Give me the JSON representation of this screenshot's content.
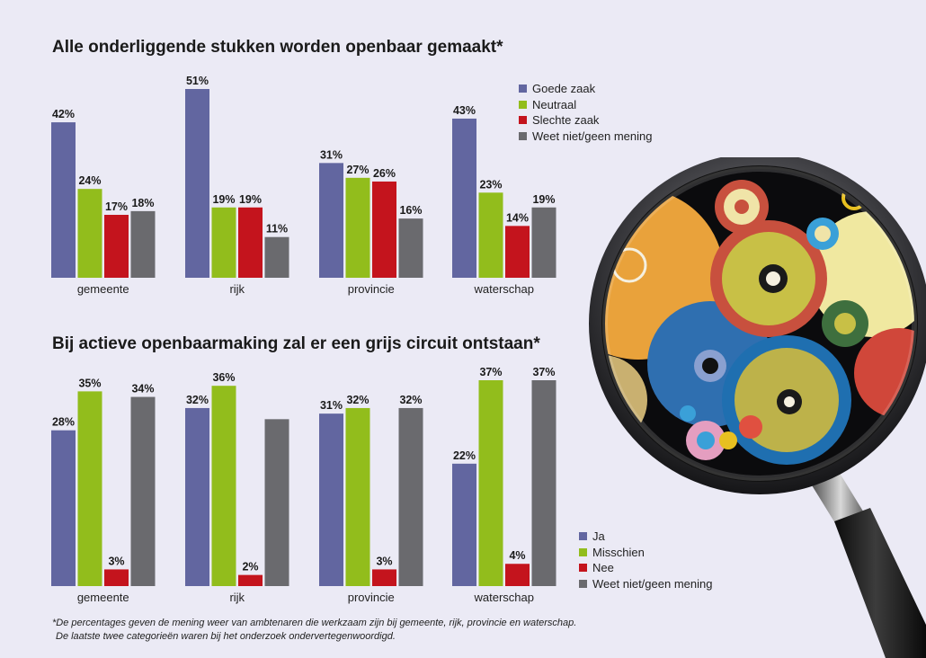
{
  "colors": {
    "series1": "#6266a0",
    "series2": "#92bd1c",
    "series3": "#c4141d",
    "series4": "#6a6a6e",
    "background": "#ebeaf5"
  },
  "chart_data": [
    {
      "type": "bar",
      "title": "Alle onderliggende stukken worden openbaar gemaakt*",
      "categories": [
        "gemeente",
        "rijk",
        "provincie",
        "waterschap"
      ],
      "series": [
        {
          "name": "Goede zaak",
          "values": [
            42,
            51,
            31,
            43
          ],
          "labels": [
            "42%",
            "51%",
            "31%",
            "43%"
          ]
        },
        {
          "name": "Neutraal",
          "values": [
            24,
            19,
            27,
            23
          ],
          "labels": [
            "24%",
            "19%",
            "27%",
            "23%"
          ]
        },
        {
          "name": "Slechte zaak",
          "values": [
            17,
            19,
            26,
            14
          ],
          "labels": [
            "17%",
            "19%",
            "26%",
            "14%"
          ]
        },
        {
          "name": "Weet niet/geen mening",
          "values": [
            18,
            11,
            16,
            19
          ],
          "labels": [
            "18%",
            "11%",
            "16%",
            "19%"
          ]
        }
      ],
      "ylim": [
        0,
        51
      ],
      "legend": "top-right"
    },
    {
      "type": "bar",
      "title": "Bij actieve openbaarmaking zal er een grijs circuit ontstaan*",
      "categories": [
        "gemeente",
        "rijk",
        "provincie",
        "waterschap"
      ],
      "series": [
        {
          "name": "Ja",
          "values": [
            28,
            32,
            31,
            22
          ],
          "labels": [
            "28%",
            "32%",
            "31%",
            "22%"
          ]
        },
        {
          "name": "Misschien",
          "values": [
            35,
            36,
            32,
            37
          ],
          "labels": [
            "35%",
            "36%",
            "32%",
            "37%"
          ]
        },
        {
          "name": "Nee",
          "values": [
            3,
            2,
            3,
            4
          ],
          "labels": [
            "3%",
            "2%",
            "3%",
            "4%"
          ]
        },
        {
          "name": "Weet niet/geen mening",
          "values": [
            34,
            30,
            32,
            37
          ],
          "labels": [
            "34%",
            "",
            "32%",
            "37%"
          ]
        }
      ],
      "ylim": [
        0,
        37
      ],
      "legend": "bottom-right"
    }
  ],
  "footnote": {
    "line1": "*De percentages geven de mening weer van ambtenaren die werkzaam zijn bij gemeente, rijk, provincie en waterschap.",
    "line2": "De laatste twee categorieën waren bij het onderzoek ondervertegenwoordigd."
  }
}
